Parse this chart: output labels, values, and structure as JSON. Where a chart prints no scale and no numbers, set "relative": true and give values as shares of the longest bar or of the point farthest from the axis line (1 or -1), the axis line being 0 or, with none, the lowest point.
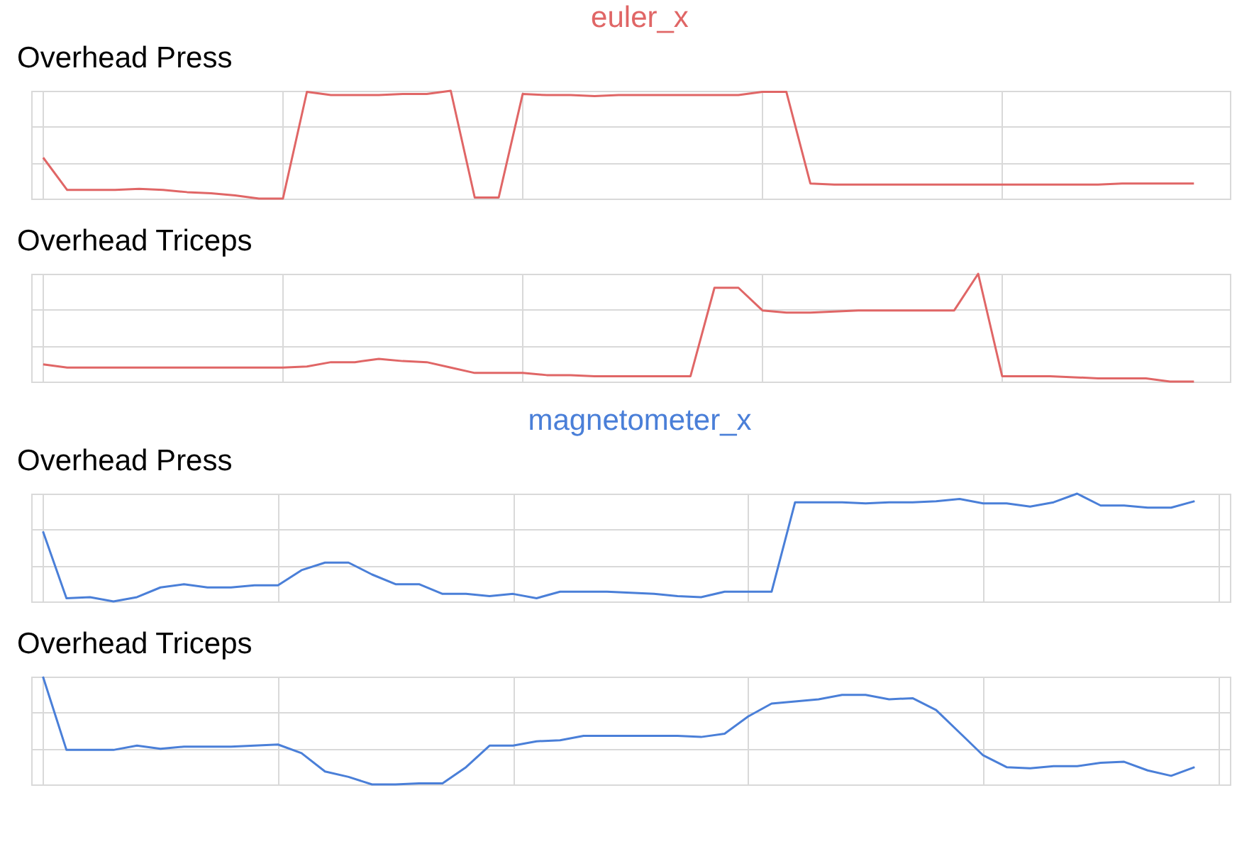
{
  "chart_data": [
    {
      "type": "line",
      "title": "Overhead Press",
      "annotations": [
        "euler_x"
      ],
      "relative": true,
      "grid": true,
      "categories": [
        null,
        null,
        null,
        null,
        null,
        null,
        null,
        null,
        null,
        null,
        null,
        null,
        null,
        null,
        null,
        null,
        null,
        null,
        null,
        null,
        null,
        null,
        null,
        null,
        null,
        null,
        null,
        null,
        null,
        null,
        null,
        null,
        null,
        null,
        null,
        null,
        null,
        null,
        null,
        null,
        null,
        null,
        null,
        null,
        null,
        null,
        null,
        null,
        null
      ],
      "series": [
        {
          "color": "#e06666",
          "values": [
            0.38,
            0.08,
            0.08,
            0.08,
            0.09,
            0.08,
            0.06,
            0.05,
            0.03,
            0,
            0,
            0.99,
            0.96,
            0.96,
            0.96,
            0.97,
            0.97,
            1,
            0.01,
            0.01,
            0.97,
            0.96,
            0.96,
            0.95,
            0.96,
            0.96,
            0.96,
            0.96,
            0.96,
            0.96,
            0.99,
            0.99,
            0.14,
            0.13,
            0.13,
            0.13,
            0.13,
            0.13,
            0.13,
            0.13,
            0.13,
            0.13,
            0.13,
            0.13,
            0.13,
            0.14,
            0.14,
            0.14,
            0.14
          ]
        }
      ]
    },
    {
      "type": "line",
      "title": "Overhead Triceps",
      "relative": true,
      "grid": true,
      "categories": [
        null,
        null,
        null,
        null,
        null,
        null,
        null,
        null,
        null,
        null,
        null,
        null,
        null,
        null,
        null,
        null,
        null,
        null,
        null,
        null,
        null,
        null,
        null,
        null,
        null,
        null,
        null,
        null,
        null,
        null,
        null,
        null,
        null,
        null,
        null,
        null,
        null,
        null,
        null,
        null,
        null,
        null,
        null,
        null,
        null,
        null,
        null,
        null,
        null
      ],
      "series": [
        {
          "color": "#e06666",
          "values": [
            0.16,
            0.13,
            0.13,
            0.13,
            0.13,
            0.13,
            0.13,
            0.13,
            0.13,
            0.13,
            0.13,
            0.14,
            0.18,
            0.18,
            0.21,
            0.19,
            0.18,
            0.13,
            0.08,
            0.08,
            0.08,
            0.06,
            0.06,
            0.05,
            0.05,
            0.05,
            0.05,
            0.05,
            0.87,
            0.87,
            0.66,
            0.64,
            0.64,
            0.65,
            0.66,
            0.66,
            0.66,
            0.66,
            0.66,
            1,
            0.05,
            0.05,
            0.05,
            0.04,
            0.03,
            0.03,
            0.03,
            0,
            0
          ]
        }
      ]
    },
    {
      "type": "line",
      "title": "Overhead Press",
      "annotations": [
        "magnetometer_x"
      ],
      "relative": true,
      "grid": true,
      "categories": [
        null,
        null,
        null,
        null,
        null,
        null,
        null,
        null,
        null,
        null,
        null,
        null,
        null,
        null,
        null,
        null,
        null,
        null,
        null,
        null,
        null,
        null,
        null,
        null,
        null,
        null,
        null,
        null,
        null,
        null,
        null,
        null,
        null,
        null,
        null,
        null,
        null,
        null,
        null,
        null,
        null,
        null,
        null,
        null,
        null,
        null,
        null,
        null,
        null,
        null
      ],
      "series": [
        {
          "color": "#4a7fd8",
          "values": [
            0.65,
            0.03,
            0.04,
            0,
            0.04,
            0.13,
            0.16,
            0.13,
            0.13,
            0.15,
            0.15,
            0.29,
            0.36,
            0.36,
            0.25,
            0.16,
            0.16,
            0.07,
            0.07,
            0.05,
            0.07,
            0.03,
            0.09,
            0.09,
            0.09,
            0.08,
            0.07,
            0.05,
            0.04,
            0.09,
            0.09,
            0.09,
            0.92,
            0.92,
            0.92,
            0.91,
            0.92,
            0.92,
            0.93,
            0.95,
            0.91,
            0.91,
            0.88,
            0.92,
            1,
            0.89,
            0.89,
            0.87,
            0.87,
            0.93
          ]
        }
      ]
    },
    {
      "type": "line",
      "title": "Overhead Triceps",
      "relative": true,
      "grid": true,
      "categories": [
        null,
        null,
        null,
        null,
        null,
        null,
        null,
        null,
        null,
        null,
        null,
        null,
        null,
        null,
        null,
        null,
        null,
        null,
        null,
        null,
        null,
        null,
        null,
        null,
        null,
        null,
        null,
        null,
        null,
        null,
        null,
        null,
        null,
        null,
        null,
        null,
        null,
        null,
        null,
        null,
        null,
        null,
        null,
        null,
        null,
        null,
        null,
        null,
        null,
        null
      ],
      "series": [
        {
          "color": "#4a7fd8",
          "values": [
            1,
            0.32,
            0.32,
            0.32,
            0.36,
            0.33,
            0.35,
            0.35,
            0.35,
            0.36,
            0.37,
            0.29,
            0.12,
            0.07,
            0,
            0,
            0.01,
            0.01,
            0.16,
            0.36,
            0.36,
            0.4,
            0.41,
            0.45,
            0.45,
            0.45,
            0.45,
            0.45,
            0.44,
            0.47,
            0.63,
            0.75,
            0.77,
            0.79,
            0.83,
            0.83,
            0.79,
            0.8,
            0.69,
            0.48,
            0.27,
            0.16,
            0.15,
            0.17,
            0.17,
            0.2,
            0.21,
            0.13,
            0.08,
            0.16
          ]
        }
      ]
    }
  ]
}
